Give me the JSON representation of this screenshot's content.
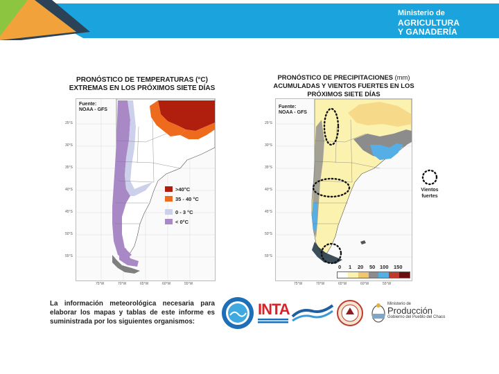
{
  "header": {
    "ministry_line1": "Ministerio de",
    "ministry_line2": "AGRICULTURA",
    "ministry_line3": "Y GANADERÍA"
  },
  "temp_panel": {
    "title_line1": "PRONÓSTICO DE TEMPERATURAS (°C)",
    "title_line2": "EXTREMAS EN LOS PRÓXIMOS SIETE DÍAS",
    "source_line1": "Fuente:",
    "source_line2": "NOAA - GFS",
    "lat_labels": [
      "25°S",
      "30°S",
      "35°S",
      "40°S",
      "45°S",
      "50°S",
      "55°S"
    ],
    "lon_labels": [
      "75°W",
      "70°W",
      "65°W",
      "60°W",
      "55°W"
    ],
    "legend": [
      {
        "label": ">40°C",
        "color": "#b01e0e"
      },
      {
        "label": "35 - 40 °C",
        "color": "#ee6a1c"
      },
      {
        "label": "0 - 3 °C",
        "color": "#cdd0ea"
      },
      {
        "label": "< 0°C",
        "color": "#a889c6"
      }
    ]
  },
  "precip_panel": {
    "title_line1": "PRONÓSTICO DE PRECIPITACIONES",
    "title_units": "(mm)",
    "title_line2": "ACUMULADAS Y VIENTOS FUERTES EN LOS",
    "title_line3": "PRÓXIMOS SIETE DÍAS",
    "source_line1": "Fuente:",
    "source_line2": "NOAA - GFS",
    "lat_labels": [
      "25°S",
      "30°S",
      "35°S",
      "40°S",
      "45°S",
      "50°S",
      "55°S"
    ],
    "lon_labels": [
      "75°W",
      "70°W",
      "65°W",
      "60°W",
      "55°W"
    ],
    "scale_labels": [
      "0",
      "1",
      "20",
      "50",
      "100",
      "150"
    ],
    "scale_colors": [
      "#ffffff",
      "#fbf2b0",
      "#f2c66a",
      "#8c8c8c",
      "#56aee6",
      "#c0392b",
      "#6b0f0f"
    ],
    "wind_legend_label_line1": "Vientos",
    "wind_legend_label_line2": "fuertes"
  },
  "footer": {
    "info_text": "La información meteorológica necesaria para elaborar los mapas y tablas de este informe es suministrada por los siguientes organismos:",
    "logo_inta": "INTA",
    "logo_prod_line1": "Ministerio de",
    "logo_prod_line2": "Producción",
    "logo_prod_line3": "Gobierno del Pueblo del Chaco"
  },
  "colors": {
    "header_blue": "#1aa3dd",
    "header_dark": "#2c4257",
    "header_orange": "#f2a23a",
    "header_green": "#8cc540"
  }
}
